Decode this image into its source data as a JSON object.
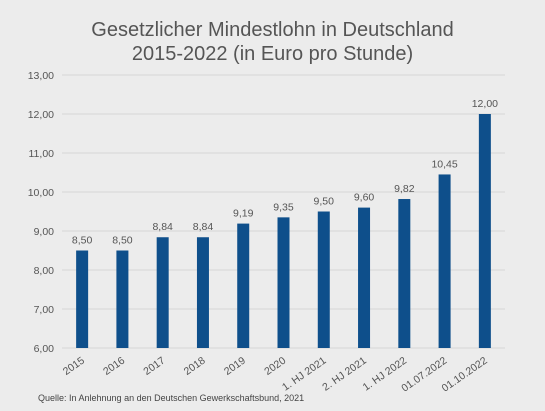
{
  "header": {
    "title_line1": "Gesetzlicher Mindestlohn in Deutschland",
    "title_line2": "2015-2022 (in Euro pro Stunde)"
  },
  "footer": {
    "source": "Quelle: In Anlehnung an den Deutschen Gewerkschaftsbund, 2021"
  },
  "colors": {
    "bar": "#0e4f8b",
    "background": "#ececec",
    "grid": "#d6d6d6",
    "text": "#555555"
  },
  "chart_data": {
    "type": "bar",
    "title": "Gesetzlicher Mindestlohn in Deutschland 2015-2022 (in Euro pro Stunde)",
    "categories": [
      "2015",
      "2016",
      "2017",
      "2018",
      "2019",
      "2020",
      "1. HJ 2021",
      "2. HJ 2021",
      "1. HJ 2022",
      "01.07.2022",
      "01.10.2022"
    ],
    "values": [
      8.5,
      8.5,
      8.84,
      8.84,
      9.19,
      9.35,
      9.5,
      9.6,
      9.82,
      10.45,
      12.0
    ],
    "value_labels": [
      "8,50",
      "8,50",
      "8,84",
      "8,84",
      "9,19",
      "9,35",
      "9,50",
      "9,60",
      "9,82",
      "10,45",
      "12,00"
    ],
    "yticks": [
      6,
      7,
      8,
      9,
      10,
      11,
      12,
      13
    ],
    "ytick_labels": [
      "6,00",
      "7,00",
      "8,00",
      "9,00",
      "10,00",
      "11,00",
      "12,00",
      "13,00"
    ],
    "ylim": [
      6,
      13
    ],
    "xlabel": "",
    "ylabel": "",
    "grid": true,
    "legend": "none"
  }
}
